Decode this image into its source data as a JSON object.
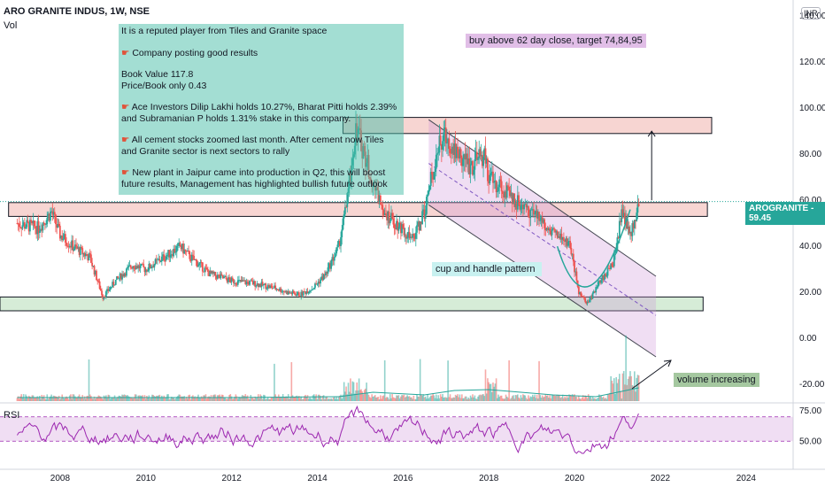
{
  "header": {
    "title": "ARO GRANITE INDUS, 1W, NSE",
    "indicator": "Vol",
    "currency": "INR"
  },
  "note": {
    "lines": [
      "It is a reputed player from Tiles and Granite space",
      "Company posting good results",
      "Book Value  117.8\nPrice/Book only  0.43",
      "Ace Investors Dilip Lakhi holds 10.27%, Bharat Pitti holds 2.39% and Subramanian P holds 1.31% stake in this company.",
      "All cement stocks zoomed last month. After cement now Tiles and Granite sector is next sectors to rally",
      "New plant in Jaipur came into production in Q2, this will boost future results, Management has highlighted bullish future outlook"
    ],
    "pointer_icon": "hand-pointer-icon"
  },
  "labels": {
    "target": "buy above 62 day close, target 74,84,95",
    "pattern": "cup and handle pattern",
    "volume": "volume increasing"
  },
  "price_tag": {
    "symbol": "AROGRANITE",
    "value": "59.45",
    "color": "#26a69a"
  },
  "rsi": {
    "label": "RSI",
    "ticks": [
      "75.00",
      "50.00"
    ],
    "color": "#9c27b0"
  },
  "chart_data": {
    "type": "line",
    "subtype": "candlestick",
    "title": "ARO GRANITE INDUS, 1W, NSE",
    "xlabel": "",
    "ylabel": "",
    "x_ticks": [
      "2008",
      "2010",
      "2012",
      "2014",
      "2016",
      "2018",
      "2020",
      "2022",
      "2024"
    ],
    "y_ticks": [
      "140.00",
      "120.00",
      "100.00",
      "80.00",
      "60.00",
      "40.00",
      "20.00",
      "0.00",
      "-20.00"
    ],
    "ylim": [
      -28,
      147
    ],
    "xlim": [
      2006.6,
      2025.1
    ],
    "series": [
      {
        "x": [
          2007.0,
          2007.5,
          2007.8,
          2008.0,
          2008.3,
          2008.7,
          2009.0,
          2009.3,
          2009.7,
          2010.0,
          2010.4,
          2010.8,
          2011.0,
          2011.5,
          2012.0,
          2012.5,
          2013.0,
          2013.3,
          2013.6,
          2013.9,
          2014.2,
          2014.5,
          2014.7,
          2014.9,
          2015.1,
          2015.4,
          2015.7,
          2016.0,
          2016.2,
          2016.5,
          2016.8,
          2017.0,
          2017.3,
          2017.6,
          2017.9,
          2018.0,
          2018.3,
          2018.6,
          2019.0,
          2019.3,
          2019.6,
          2019.9,
          2020.1,
          2020.3,
          2020.6,
          2020.9,
          2021.1,
          2021.3,
          2021.5
        ],
        "values": [
          50,
          48,
          55,
          45,
          40,
          35,
          18,
          25,
          32,
          30,
          35,
          40,
          36,
          28,
          25,
          24,
          22,
          20,
          19,
          22,
          28,
          40,
          60,
          92,
          80,
          62,
          52,
          48,
          42,
          55,
          82,
          88,
          80,
          75,
          80,
          70,
          65,
          60,
          55,
          50,
          45,
          40,
          20,
          15,
          25,
          32,
          55,
          45,
          59.45
        ]
      }
    ],
    "zones": [
      {
        "name": "resistance-zone",
        "range": [
          89,
          96
        ],
        "color": "#f4c7c3"
      },
      {
        "name": "breakout-zone",
        "range": [
          53,
          59
        ],
        "color": "#f4c7c3"
      },
      {
        "name": "support-zone",
        "range": [
          12,
          18
        ],
        "color": "#c8e6c9"
      }
    ],
    "last_price": 59.45,
    "rsi": {
      "ticks": [
        75,
        50
      ],
      "band": [
        50,
        70
      ]
    }
  }
}
